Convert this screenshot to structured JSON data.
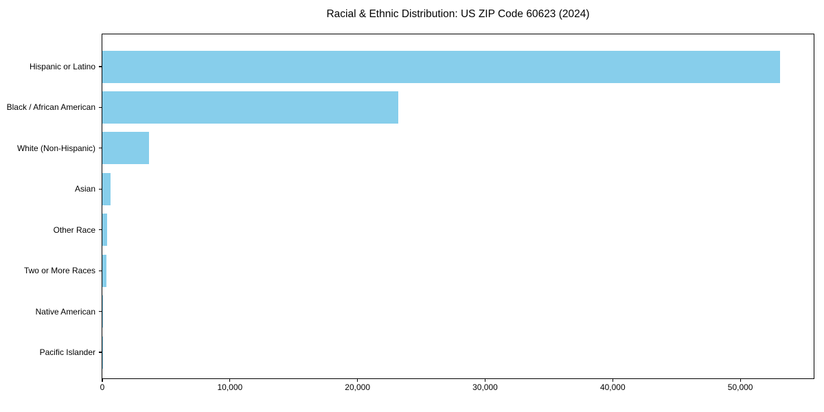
{
  "chart_data": {
    "type": "bar",
    "orientation": "horizontal",
    "title": "Racial & Ethnic Distribution: US ZIP Code 60623 (2024)",
    "categories": [
      "Hispanic or Latino",
      "Black / African American",
      "White (Non-Hispanic)",
      "Asian",
      "Other Race",
      "Two or More Races",
      "Native American",
      "Pacific Islander"
    ],
    "values": [
      53100,
      23200,
      3650,
      650,
      380,
      320,
      50,
      10
    ],
    "xlabel": "",
    "ylabel": "",
    "xlim": [
      0,
      55750
    ],
    "x_ticks": [
      0,
      10000,
      20000,
      30000,
      40000,
      50000
    ],
    "x_tick_labels": [
      "0",
      "10,000",
      "20,000",
      "30,000",
      "40,000",
      "50,000"
    ],
    "bar_color": "#87CEEB",
    "background_color": "#ffffff",
    "axis_color": "#000000",
    "grid": false,
    "legend": null
  }
}
